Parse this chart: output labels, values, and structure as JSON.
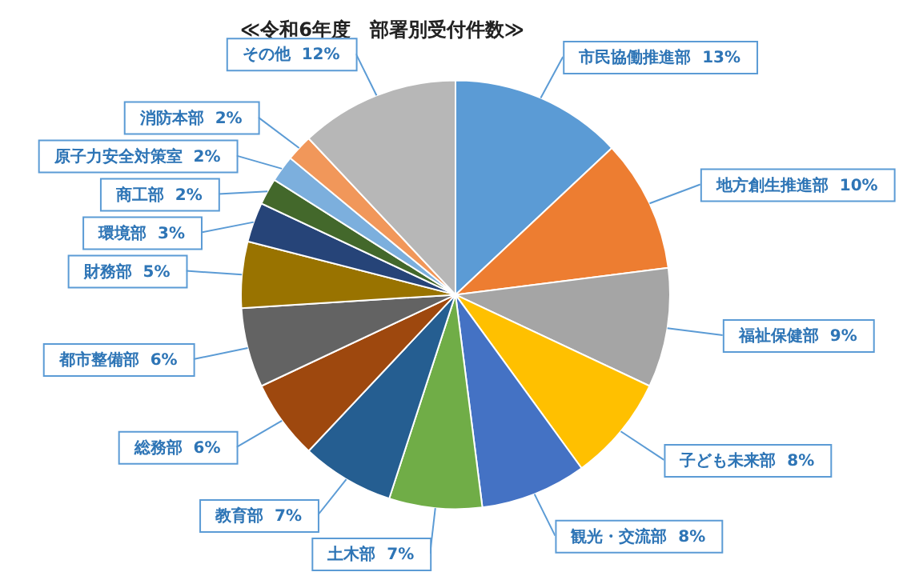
{
  "chart_data": {
    "type": "pie",
    "title": "≪令和6年度　部署別受付件数≫",
    "categories": [
      "市民協働推進部",
      "地方創生推進部",
      "福祉保健部",
      "子ども未来部",
      "観光・交流部",
      "土木部",
      "教育部",
      "総務部",
      "都市整備部",
      "財務部",
      "環境部",
      "商工部",
      "原子力安全対策室",
      "消防本部",
      "その他"
    ],
    "values": [
      13,
      10,
      9,
      8,
      8,
      7,
      7,
      6,
      6,
      5,
      3,
      2,
      2,
      2,
      12
    ],
    "value_labels": [
      "13%",
      "10%",
      "9%",
      "8%",
      "8%",
      "7%",
      "7%",
      "6%",
      "6%",
      "5%",
      "3%",
      "2%",
      "2%",
      "2%",
      "12%"
    ],
    "colors": [
      "#5b9bd5",
      "#ed7d31",
      "#a5a5a5",
      "#ffc000",
      "#4472c4",
      "#70ad47",
      "#255e91",
      "#9e480e",
      "#636363",
      "#997300",
      "#264478",
      "#43682b",
      "#7cafdd",
      "#f1975a",
      "#b7b7b7"
    ],
    "legend": false
  }
}
